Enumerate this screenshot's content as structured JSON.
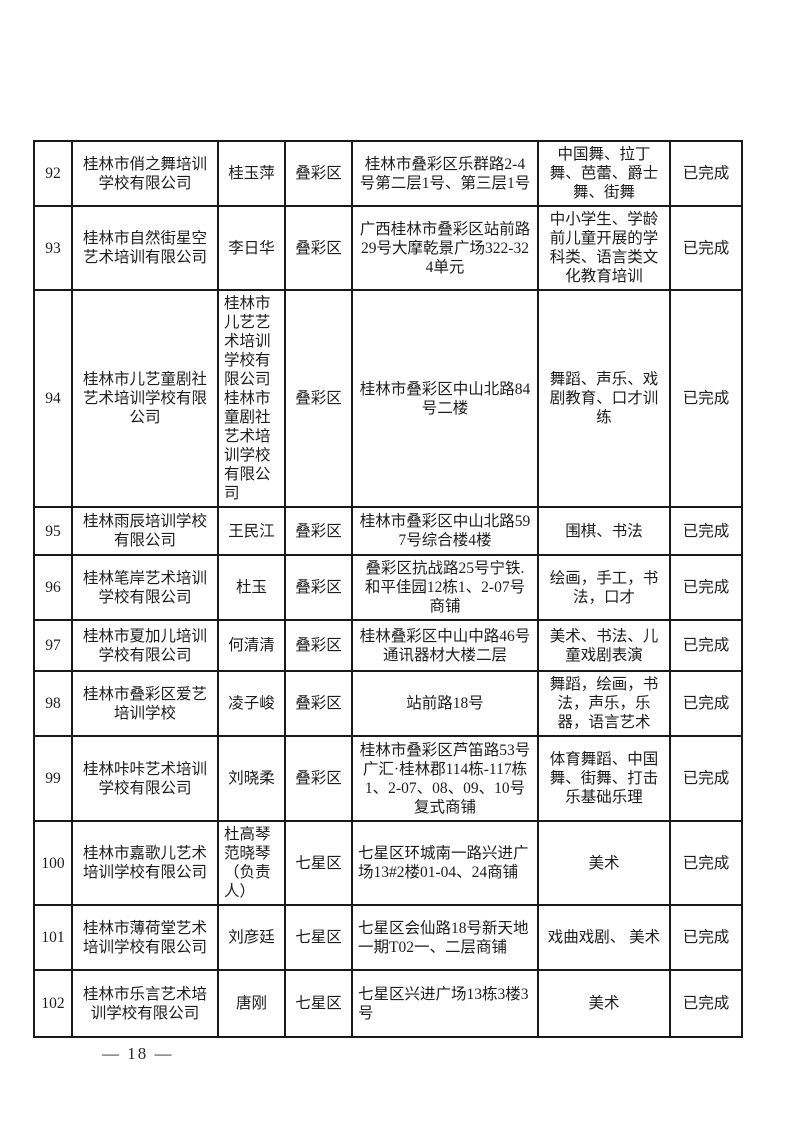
{
  "page": {
    "footer_page_number": "— 18 —"
  },
  "table": {
    "columns": [
      "no",
      "school",
      "person",
      "district",
      "address",
      "subjects",
      "status"
    ],
    "rows": [
      {
        "no": "92",
        "school": "桂林市俏之舞培训学校有限公司",
        "person": "桂玉萍",
        "district": "叠彩区",
        "address": "桂林市叠彩区乐群路2-4号第二层1号、第三层1号",
        "subjects": "中国舞、拉丁舞、芭蕾、爵士舞、街舞",
        "status": "已完成"
      },
      {
        "no": "93",
        "school": "桂林市自然街星空艺术培训有限公司",
        "person": "李日华",
        "district": "叠彩区",
        "address": "广西桂林市叠彩区站前路29号大摩乾景广场322-324单元",
        "subjects": "中小学生、学龄前儿童开展的学科类、语言类文化教育培训",
        "status": "已完成"
      },
      {
        "no": "94",
        "school": "桂林市儿艺童剧社艺术培训学校有限公司",
        "person": "桂林市儿艺艺术培训学校有限公司桂林市童剧社艺术培训学校有限公司",
        "district": "叠彩区",
        "address": "桂林市叠彩区中山北路84号二楼",
        "subjects": "舞蹈、声乐、戏剧教育、口才训练",
        "status": "已完成"
      },
      {
        "no": "95",
        "school": "桂林雨辰培训学校有限公司",
        "person": "王民江",
        "district": "叠彩区",
        "address": "桂林市叠彩区中山北路597号综合楼4楼",
        "subjects": "围棋、书法",
        "status": "已完成"
      },
      {
        "no": "96",
        "school": "桂林笔岸艺术培训学校有限公司",
        "person": "杜玉",
        "district": "叠彩区",
        "address": "叠彩区抗战路25号宁铁.和平佳园12栋1、2-07号商铺",
        "subjects": "绘画，手工，书法，口才",
        "status": "已完成"
      },
      {
        "no": "97",
        "school": "桂林市夏加儿培训学校有限公司",
        "person": "何清清",
        "district": "叠彩区",
        "address": "桂林叠彩区中山中路46号通讯器材大楼二层",
        "subjects": "美术、书法、儿童戏剧表演",
        "status": "已完成"
      },
      {
        "no": "98",
        "school": "桂林市叠彩区爱艺培训学校",
        "person": "凌子峻",
        "district": "叠彩区",
        "address": "站前路18号",
        "subjects": "舞蹈，绘画，书法，声乐，乐器，语言艺术",
        "status": "已完成"
      },
      {
        "no": "99",
        "school": "桂林咔咔艺术培训学校有限公司",
        "person": "刘晓柔",
        "district": "叠彩区",
        "address": "桂林市叠彩区芦笛路53号广汇·桂林郡114栋-117栋1、2-07、08、09、10号复式商铺",
        "subjects": "体育舞蹈、中国舞、街舞、打击乐基础乐理",
        "status": "已完成"
      },
      {
        "no": "100",
        "school": "桂林市嘉歌儿艺术培训学校有限公司",
        "person": "杜高琴范晓琴（负责人）",
        "district": "七星区",
        "address": "七星区环城南一路兴进广场13#2楼01-04、24商铺",
        "subjects": "美术",
        "status": "已完成"
      },
      {
        "no": "101",
        "school": "桂林市薄荷堂艺术培训学校有限公司",
        "person": "刘彦廷",
        "district": "七星区",
        "address": "七星区会仙路18号新天地一期T02一、二层商铺",
        "subjects": "戏曲戏剧、 美术",
        "status": "已完成"
      },
      {
        "no": "102",
        "school": "桂林市乐言艺术培训学校有限公司",
        "person": "唐刚",
        "district": "七星区",
        "address": "七星区兴进广场13栋3楼3号",
        "subjects": "美术",
        "status": "已完成"
      }
    ]
  }
}
